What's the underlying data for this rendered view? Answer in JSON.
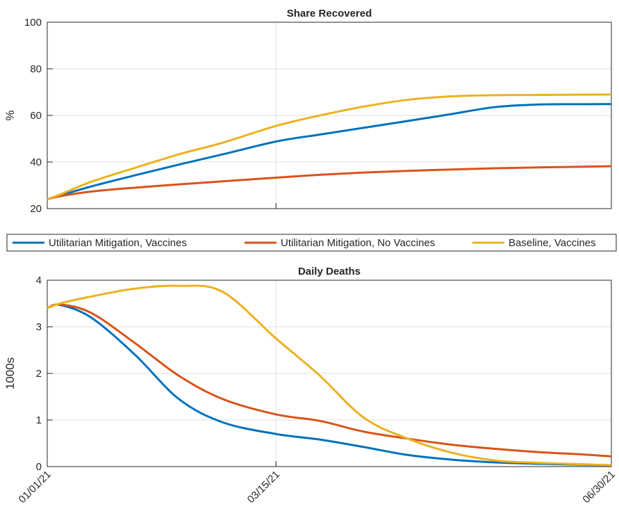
{
  "chart_data": [
    {
      "type": "line",
      "title": "Share Recovered",
      "y_label": "%",
      "x": [
        "01/01/21",
        "01/05/21",
        "01/15/21",
        "01/29/21",
        "02/12/21",
        "02/26/21",
        "03/15/21",
        "03/29/21",
        "04/12/21",
        "04/26/21",
        "05/10/21",
        "05/24/21",
        "06/07/21",
        "06/21/21",
        "06/30/21"
      ],
      "series": [
        {
          "name": "Utilitarian Mitigation, Vaccines",
          "color": "#0072bd",
          "values": [
            24,
            25.6,
            29.5,
            34.3,
            38.9,
            43.3,
            48.8,
            51.8,
            54.7,
            57.6,
            60.6,
            63.6,
            64.7,
            64.8,
            64.9
          ]
        },
        {
          "name": "Utilitarian Mitigation, No Vaccines",
          "color": "#d95319",
          "values": [
            24,
            25.3,
            27.3,
            29.0,
            30.4,
            31.7,
            33.3,
            34.5,
            35.5,
            36.2,
            36.8,
            37.3,
            37.7,
            38.0,
            38.2
          ]
        },
        {
          "name": "Baseline, Vaccines",
          "color": "#edb120",
          "values": [
            24,
            26,
            31.5,
            37.5,
            43.3,
            48.3,
            55.5,
            60,
            63.8,
            66.7,
            68.2,
            68.7,
            68.8,
            68.9,
            69.0
          ]
        }
      ],
      "xlim": [
        "01/01/21",
        "06/30/21"
      ],
      "xticks": [
        "01/01/21",
        "03/15/21",
        "06/30/21"
      ],
      "show_xtick_labels": false,
      "ylim": [
        20,
        100
      ],
      "yticks": [
        20,
        40,
        60,
        80,
        100
      ],
      "grid": true,
      "legend": "south"
    },
    {
      "type": "line",
      "title": "Daily Deaths",
      "y_label": "1000s",
      "x": [
        "01/01/21",
        "01/05/21",
        "01/15/21",
        "01/29/21",
        "02/12/21",
        "02/26/21",
        "03/15/21",
        "03/29/21",
        "04/12/21",
        "04/26/21",
        "05/10/21",
        "05/24/21",
        "06/07/21",
        "06/21/21",
        "06/30/21"
      ],
      "series": [
        {
          "name": "Utilitarian Mitigation, Vaccines",
          "color": "#0072bd",
          "values": [
            3.4,
            3.47,
            3.2,
            2.4,
            1.45,
            0.95,
            0.7,
            0.58,
            0.42,
            0.25,
            0.15,
            0.09,
            0.06,
            0.04,
            0.03
          ]
        },
        {
          "name": "Utilitarian Mitigation, No Vaccines",
          "color": "#d95319",
          "values": [
            3.4,
            3.48,
            3.3,
            2.65,
            1.95,
            1.45,
            1.12,
            0.98,
            0.75,
            0.6,
            0.47,
            0.38,
            0.31,
            0.26,
            0.22
          ]
        },
        {
          "name": "Baseline, Vaccines",
          "color": "#edb120",
          "values": [
            3.4,
            3.5,
            3.65,
            3.82,
            3.88,
            3.75,
            2.75,
            1.95,
            1.05,
            0.6,
            0.3,
            0.13,
            0.08,
            0.05,
            0.03
          ]
        }
      ],
      "xlim": [
        "01/01/21",
        "06/30/21"
      ],
      "xticks": [
        "01/01/21",
        "03/15/21",
        "06/30/21"
      ],
      "show_xtick_labels": true,
      "ylim": [
        0,
        4
      ],
      "yticks": [
        0,
        1,
        2,
        3,
        4
      ],
      "grid": true
    }
  ]
}
